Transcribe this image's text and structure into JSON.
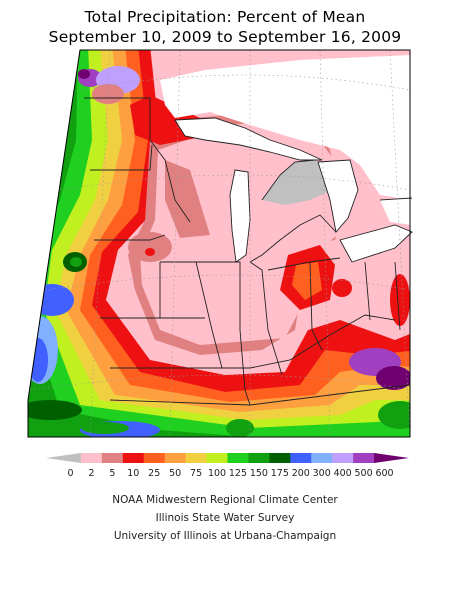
{
  "title": {
    "line1": "Total Precipitation: Percent of Mean",
    "line2": "September 10, 2009 to September 16, 2009"
  },
  "legend": {
    "labels": [
      "0",
      "2",
      "5",
      "10",
      "25",
      "50",
      "75",
      "100",
      "125",
      "150",
      "175",
      "200",
      "300",
      "400",
      "500",
      "600"
    ],
    "colors": [
      "#c0c0c0",
      "#ffc0cb",
      "#e08080",
      "#ee1111",
      "#ff6020",
      "#ffa040",
      "#f0d040",
      "#c0f020",
      "#20d020",
      "#10a010",
      "#006000",
      "#4060ff",
      "#80b0ff",
      "#c0a0ff",
      "#a040c0",
      "#700070"
    ]
  },
  "credits": {
    "line1": "NOAA Midwestern Regional Climate Center",
    "line2": "Illinois State Water Survey",
    "line3": "University of Illinois at Urbana-Champaign"
  }
}
